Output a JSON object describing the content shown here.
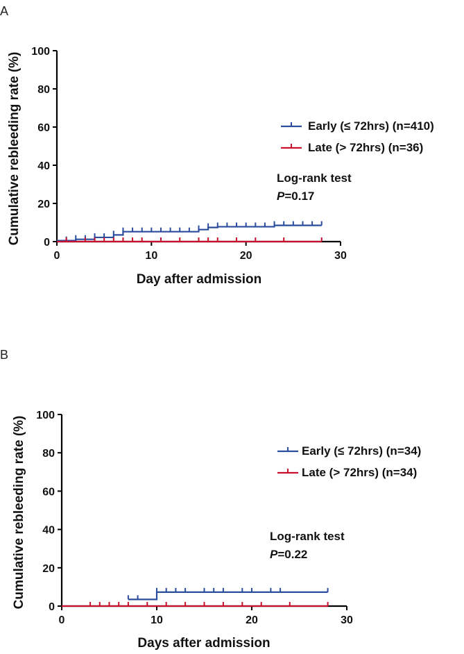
{
  "chart_data": [
    {
      "panel": "A",
      "type": "line",
      "subtype": "kaplan-meier-cumulative-incidence",
      "xlabel": "Day after admission",
      "ylabel": "Cumulative rebleeding rate (%)",
      "xlim": [
        0,
        30
      ],
      "ylim": [
        0,
        100
      ],
      "xticks": [
        0,
        10,
        20,
        30
      ],
      "yticks": [
        0,
        20,
        40,
        60,
        80,
        100
      ],
      "legend_position": "right",
      "series": [
        {
          "name": "Early (≤ 72hrs) (n=410)",
          "color": "#2b4d9e",
          "steps": [
            [
              0,
              0.5
            ],
            [
              2,
              1.2
            ],
            [
              4,
              2.2
            ],
            [
              6,
              3.5
            ],
            [
              7,
              5.2
            ],
            [
              15,
              6.3
            ],
            [
              16,
              7.4
            ],
            [
              17,
              7.8
            ],
            [
              23,
              8.5
            ],
            [
              28,
              8.5
            ]
          ],
          "censor_x": [
            1,
            2,
            3,
            4,
            5,
            6,
            7,
            8,
            9,
            10,
            11,
            12,
            13,
            14,
            15,
            16,
            17,
            18,
            19,
            20,
            21,
            22,
            23,
            24,
            25,
            26,
            27,
            28
          ]
        },
        {
          "name": "Late (> 72hrs) (n=36)",
          "color": "#c8102e",
          "steps": [
            [
              0,
              0
            ],
            [
              28,
              0
            ]
          ],
          "censor_x": [
            1,
            3,
            4,
            5,
            6,
            7,
            8,
            9,
            11,
            13,
            15,
            16,
            17,
            19,
            21,
            24,
            28
          ]
        }
      ],
      "annotation": {
        "line1": "Log-rank test",
        "p_label": "P",
        "p_value": "=0.17"
      }
    },
    {
      "panel": "B",
      "type": "line",
      "subtype": "kaplan-meier-cumulative-incidence",
      "xlabel": "Days after admission",
      "ylabel": "Cumulative rebleeding rate (%)",
      "xlim": [
        0,
        30
      ],
      "ylim": [
        0,
        100
      ],
      "xticks": [
        0,
        10,
        20,
        30
      ],
      "yticks": [
        0,
        20,
        40,
        60,
        80,
        100
      ],
      "legend_position": "right",
      "series": [
        {
          "name": "Early (≤ 72hrs) (n=34)",
          "color": "#2b4d9e",
          "steps": [
            [
              7,
              3.5
            ],
            [
              10,
              7.3
            ],
            [
              28,
              7.3
            ]
          ],
          "censor_x": [
            7,
            8,
            10,
            11,
            12,
            13,
            15,
            16,
            17,
            19,
            20,
            22,
            23,
            28
          ]
        },
        {
          "name": "Late (> 72hrs) (n=34)",
          "color": "#c8102e",
          "steps": [
            [
              0,
              0
            ],
            [
              28,
              0
            ]
          ],
          "censor_x": [
            3,
            4,
            5,
            6,
            7,
            9,
            11,
            13,
            15,
            17,
            19,
            21,
            24,
            28
          ]
        }
      ],
      "annotation": {
        "line1": "Log-rank test",
        "p_label": "P",
        "p_value": "=0.22"
      }
    }
  ]
}
